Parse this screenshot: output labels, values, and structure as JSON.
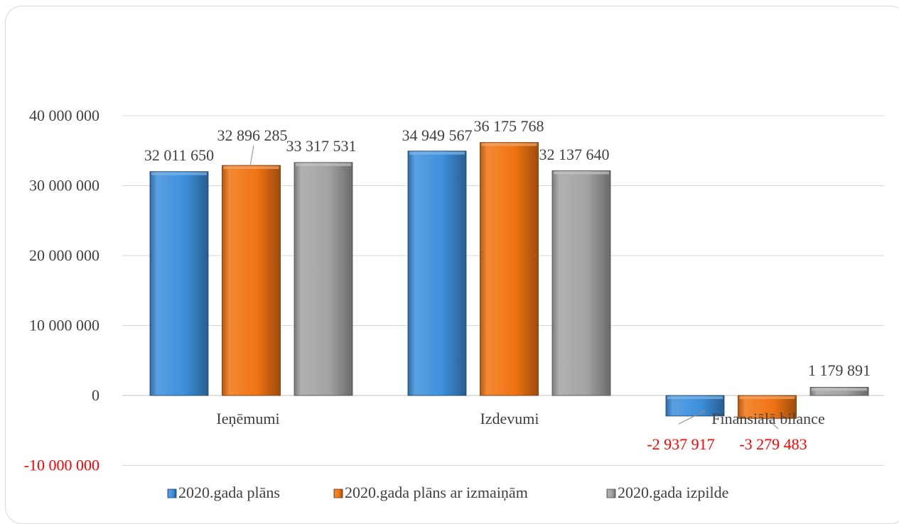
{
  "chart_data": {
    "type": "bar",
    "title": "",
    "xlabel": "",
    "ylabel": "",
    "categories": [
      "Ieņēmumi",
      "Izdevumi",
      "Finansiālā bilance"
    ],
    "series": [
      {
        "name": "2020.gada plāns",
        "color": "#3d8fdc",
        "values": [
          32011650,
          34949567,
          -2937917
        ]
      },
      {
        "name": "2020.gada plāns ar izmaiņām",
        "color": "#f07412",
        "values": [
          32896285,
          36175768,
          -3279483
        ]
      },
      {
        "name": "2020.gada izpilde",
        "color": "#a3a3a3",
        "values": [
          33317531,
          32137640,
          1179891
        ]
      }
    ],
    "data_labels": [
      [
        "32 011 650",
        "34 949 567",
        "-2 937 917"
      ],
      [
        "32 896 285",
        "36 175 768",
        "-3 279 483"
      ],
      [
        "33 317 531",
        "32 137 640",
        "1 179 891"
      ]
    ],
    "yticks": [
      {
        "value": 40000000,
        "label": "40 000 000"
      },
      {
        "value": 30000000,
        "label": "30 000 000"
      },
      {
        "value": 20000000,
        "label": "20 000 000"
      },
      {
        "value": 10000000,
        "label": "10 000 000"
      },
      {
        "value": 0,
        "label": "0"
      },
      {
        "value": -10000000,
        "label": "-10 000 000"
      }
    ],
    "ylim": [
      -10000000,
      40000000
    ],
    "grid": true,
    "legend_position": "bottom",
    "negative_label_color": "#ff0000"
  }
}
